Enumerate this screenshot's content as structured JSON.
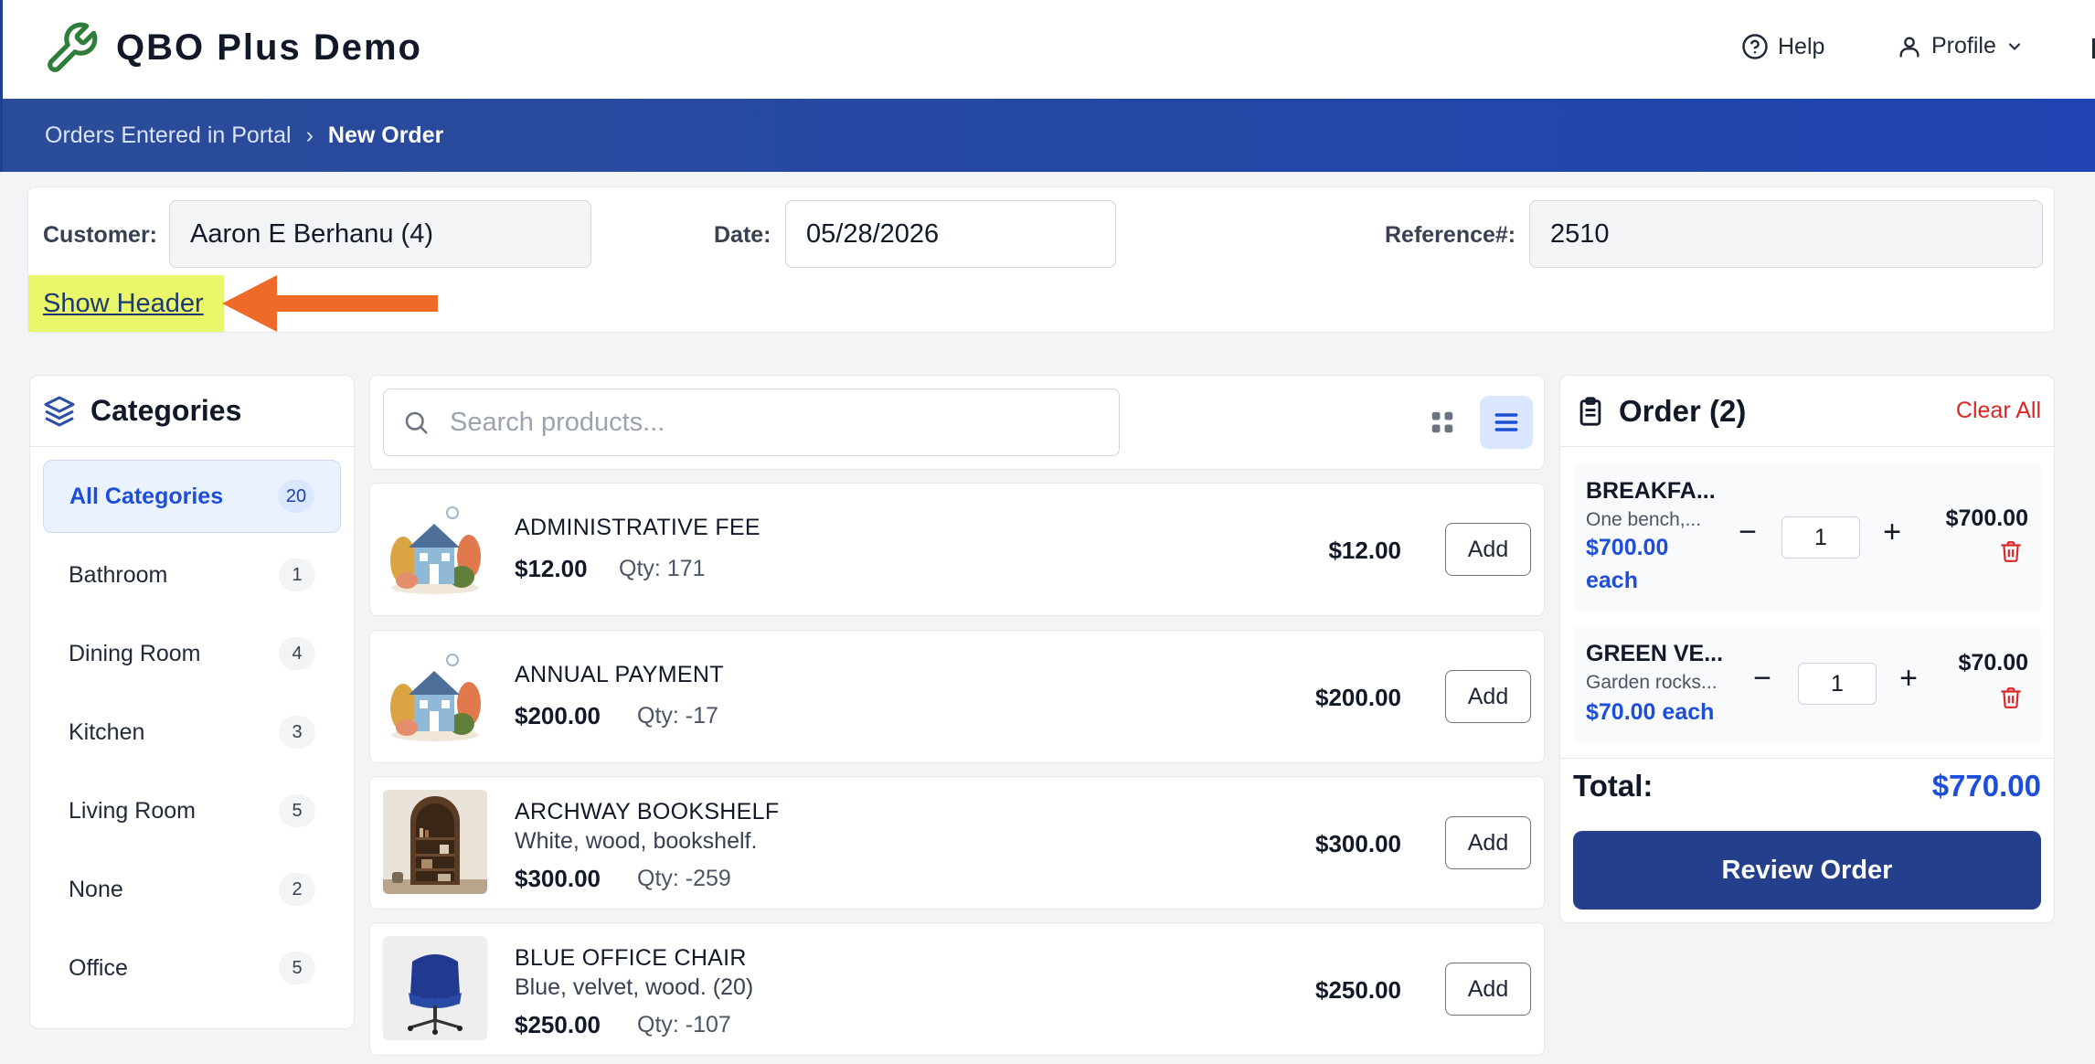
{
  "app": {
    "title": "QBO Plus Demo",
    "help_label": "Help",
    "profile_label": "Profile"
  },
  "breadcrumb": {
    "parent": "Orders Entered in Portal",
    "separator": "›",
    "current": "New Order"
  },
  "header_form": {
    "customer_label": "Customer:",
    "customer_value": "Aaron E Berhanu (4)",
    "date_label": "Date:",
    "date_value": "05/28/2026",
    "reference_label": "Reference#:",
    "reference_value": "2510",
    "show_header_link": "Show Header"
  },
  "categories": {
    "title": "Categories",
    "items": [
      {
        "label": "All Categories",
        "count": "20"
      },
      {
        "label": "Bathroom",
        "count": "1"
      },
      {
        "label": "Dining Room",
        "count": "4"
      },
      {
        "label": "Kitchen",
        "count": "3"
      },
      {
        "label": "Living Room",
        "count": "5"
      },
      {
        "label": "None",
        "count": "2"
      },
      {
        "label": "Office",
        "count": "5"
      }
    ]
  },
  "search": {
    "placeholder": "Search products..."
  },
  "products": [
    {
      "name": "ADMINISTRATIVE FEE",
      "desc": "",
      "price": "$12.00",
      "qty": "Qty: 171",
      "right_price": "$12.00",
      "add": "Add",
      "thumb": "house-illustration"
    },
    {
      "name": "ANNUAL PAYMENT",
      "desc": "",
      "price": "$200.00",
      "qty": "Qty: -17",
      "right_price": "$200.00",
      "add": "Add",
      "thumb": "house-illustration"
    },
    {
      "name": "ARCHWAY BOOKSHELF",
      "desc": "White, wood, bookshelf.",
      "price": "$300.00",
      "qty": "Qty: -259",
      "right_price": "$300.00",
      "add": "Add",
      "thumb": "bookshelf-photo"
    },
    {
      "name": "BLUE OFFICE CHAIR",
      "desc": "Blue, velvet, wood. (20)",
      "price": "$250.00",
      "qty": "Qty: -107",
      "right_price": "$250.00",
      "add": "Add",
      "thumb": "chair-photo"
    }
  ],
  "order": {
    "title": "Order (2)",
    "clear_all": "Clear All",
    "items": [
      {
        "name": "BREAKFA...",
        "desc": "One bench,...",
        "each_price": "$700.00",
        "each_word": "each",
        "qty": "1",
        "total": "$700.00"
      },
      {
        "name": "GREEN VE...",
        "desc": "Garden rocks...",
        "each": "$70.00 each",
        "qty": "1",
        "total": "$70.00"
      }
    ],
    "total_label": "Total:",
    "total_value": "$770.00",
    "review_button": "Review Order"
  },
  "colors": {
    "brand": "#243f8c",
    "accent_blue": "#1d4ed8",
    "danger": "#dc2626",
    "highlight": "#e9f76b",
    "arrow": "#ef6a2a"
  },
  "icons": [
    "wrench-icon",
    "help-circle-icon",
    "user-icon",
    "chevron-down-icon",
    "layers-icon",
    "search-icon",
    "grid-view-icon",
    "list-view-icon",
    "clipboard-icon",
    "minus-icon",
    "plus-icon",
    "trash-icon"
  ]
}
